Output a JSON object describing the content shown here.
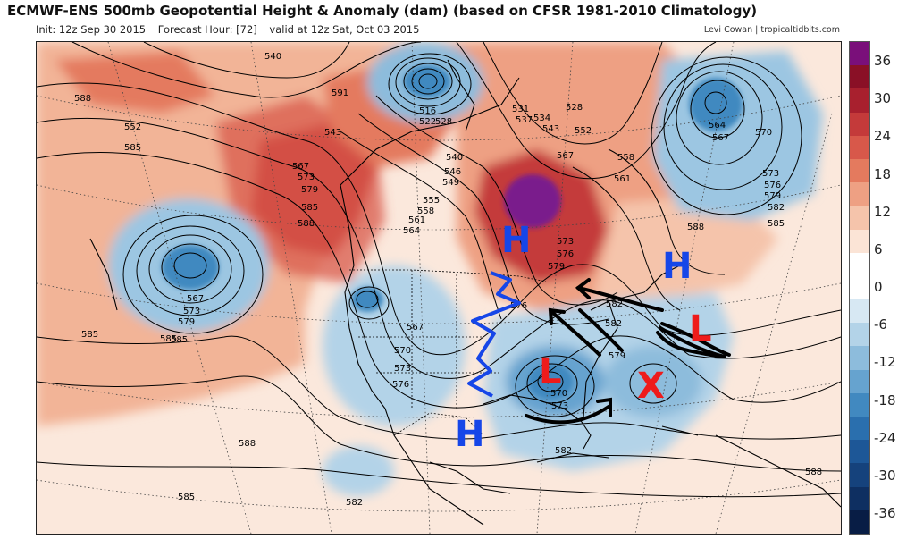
{
  "header": {
    "title": "ECMWF-ENS 500mb Geopotential Height & Anomaly (dam) (based on CFSR 1981-2010 Climatology)",
    "init": "Init: 12z Sep 30 2015",
    "forecast_hour": "Forecast Hour: [72]",
    "valid": "valid at 12z Sat, Oct 03 2015",
    "credit": "Levi Cowan | tropicaltidbits.com"
  },
  "colorbar": {
    "ticks": [
      "36",
      "30",
      "24",
      "18",
      "12",
      "6",
      "0",
      "-6",
      "-12",
      "-18",
      "-24",
      "-30",
      "-36"
    ],
    "colors": [
      "#7a0f7a",
      "#8a1026",
      "#a8202e",
      "#c43a3a",
      "#d8584a",
      "#e47a5e",
      "#eea083",
      "#f5c4ab",
      "#fbe4d6",
      "#ffffff",
      "#ffffff",
      "#d7e8f3",
      "#b3d3e8",
      "#8dbcdc",
      "#66a3cf",
      "#4189c0",
      "#2a6fae",
      "#1d5797",
      "#15427c",
      "#0e2f61",
      "#081d45"
    ]
  },
  "contour_labels": {
    "warm_ridge": [
      "573",
      "579",
      "585",
      "588",
      "567",
      "552",
      "543",
      "540",
      "591",
      "588",
      "585"
    ],
    "east_trough": [
      "516",
      "522",
      "528",
      "531",
      "537",
      "534",
      "543",
      "552",
      "558",
      "561",
      "567",
      "573",
      "576",
      "579",
      "546",
      "549",
      "555",
      "558",
      "561",
      "564",
      "540"
    ],
    "pacific_low": [
      "567",
      "573",
      "579",
      "585"
    ],
    "west_low": [
      "567",
      "570",
      "573",
      "576"
    ],
    "se_low": [
      "570",
      "573",
      "579",
      "582",
      "576"
    ],
    "atlantic": [
      "564",
      "567",
      "570",
      "573",
      "576",
      "579",
      "582",
      "585",
      "588"
    ],
    "south": [
      "585",
      "588",
      "582",
      "585",
      "588",
      "582"
    ]
  },
  "annotations": {
    "highs": [
      "H",
      "H",
      "H"
    ],
    "lows": [
      "L",
      "L"
    ],
    "x_mark": "X"
  },
  "colors": {
    "warm_light": "#f5c4ab",
    "warm_mid": "#e47a5e",
    "warm_strong": "#b8262e",
    "cool_light": "#b3d3e8",
    "cool_mid": "#66a3cf",
    "cool_strong": "#2a6fae",
    "purple": "#7a1f8c",
    "annotation_blue": "#1646e8",
    "annotation_red": "#ee1b1b"
  }
}
